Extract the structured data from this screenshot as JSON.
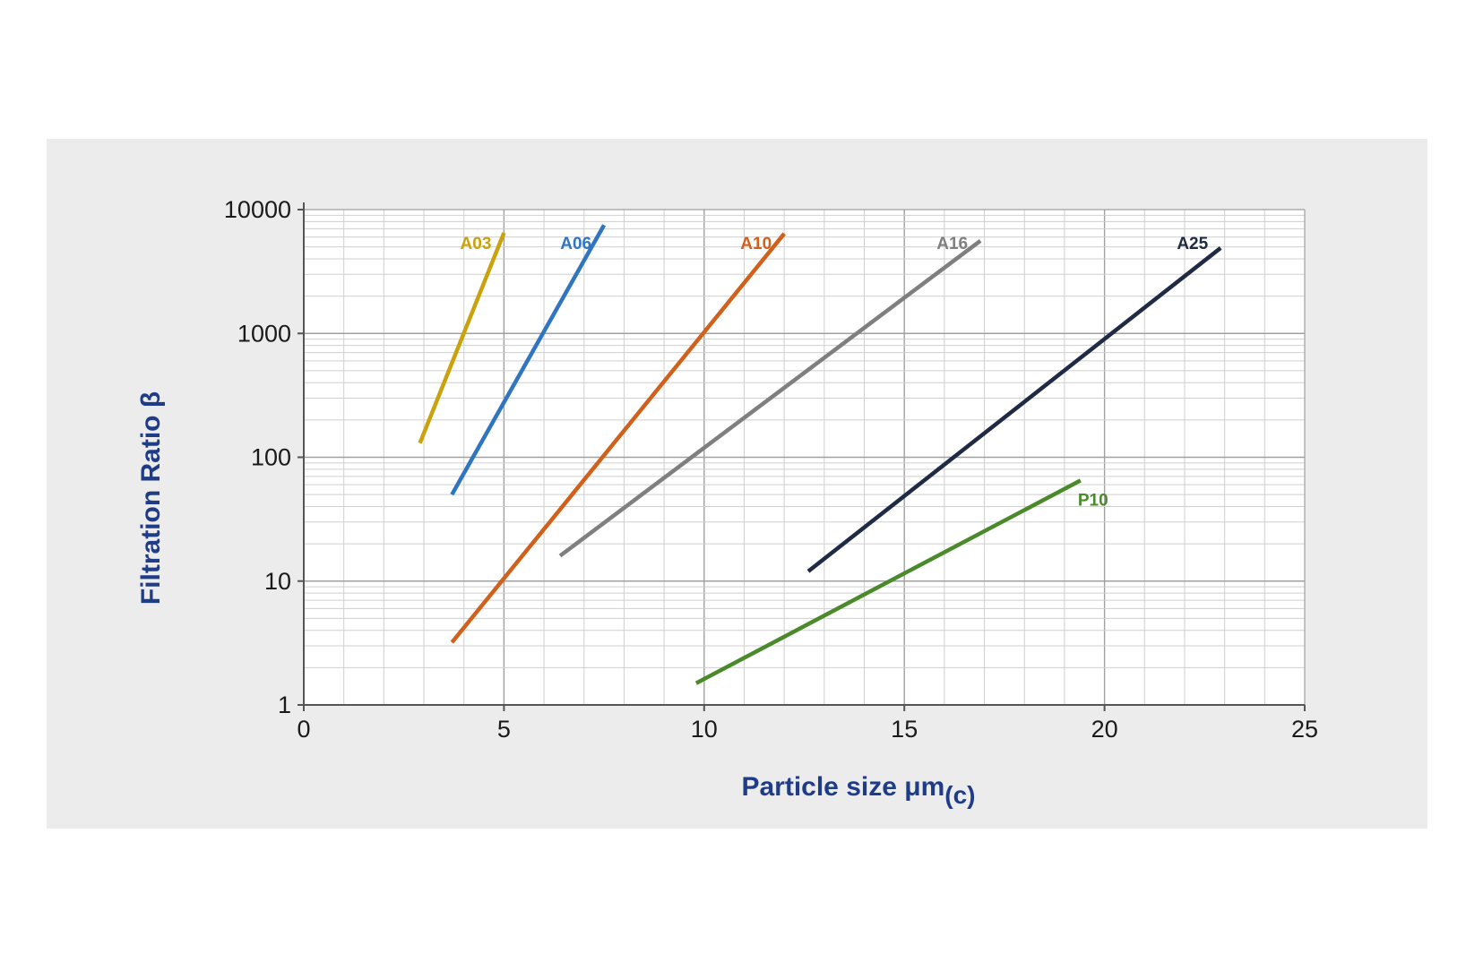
{
  "chart_data": {
    "type": "line",
    "title": "",
    "xlabel": "Particle size μm",
    "xlabel_subscript": "(c)",
    "ylabel": "Filtration Ratio β",
    "xlim": [
      0,
      25
    ],
    "ylim": [
      1,
      10000
    ],
    "y_scale": "log",
    "grid": true,
    "x_ticks": [
      "0",
      "5",
      "10",
      "15",
      "20",
      "25"
    ],
    "y_ticks": [
      "1",
      "10",
      "100",
      "1000",
      "10000"
    ],
    "axis_title_color": "#1f3c88",
    "series": [
      {
        "name": "A03",
        "color": "#c9a20c",
        "x": [
          2.9,
          5.0
        ],
        "y": [
          130,
          6500
        ]
      },
      {
        "name": "A06",
        "color": "#2f75c0",
        "x": [
          3.7,
          7.5
        ],
        "y": [
          50,
          7500
        ]
      },
      {
        "name": "A10",
        "color": "#d1601a",
        "x": [
          3.7,
          12.0
        ],
        "y": [
          3.2,
          6400
        ]
      },
      {
        "name": "A16",
        "color": "#7f7f7f",
        "x": [
          6.4,
          16.9
        ],
        "y": [
          16,
          5600
        ]
      },
      {
        "name": "A25",
        "color": "#1f2a44",
        "x": [
          12.6,
          22.9
        ],
        "y": [
          12,
          4900
        ]
      },
      {
        "name": "P10",
        "color": "#4a8a2a",
        "x": [
          9.8,
          19.4
        ],
        "y": [
          1.5,
          65
        ]
      }
    ]
  }
}
